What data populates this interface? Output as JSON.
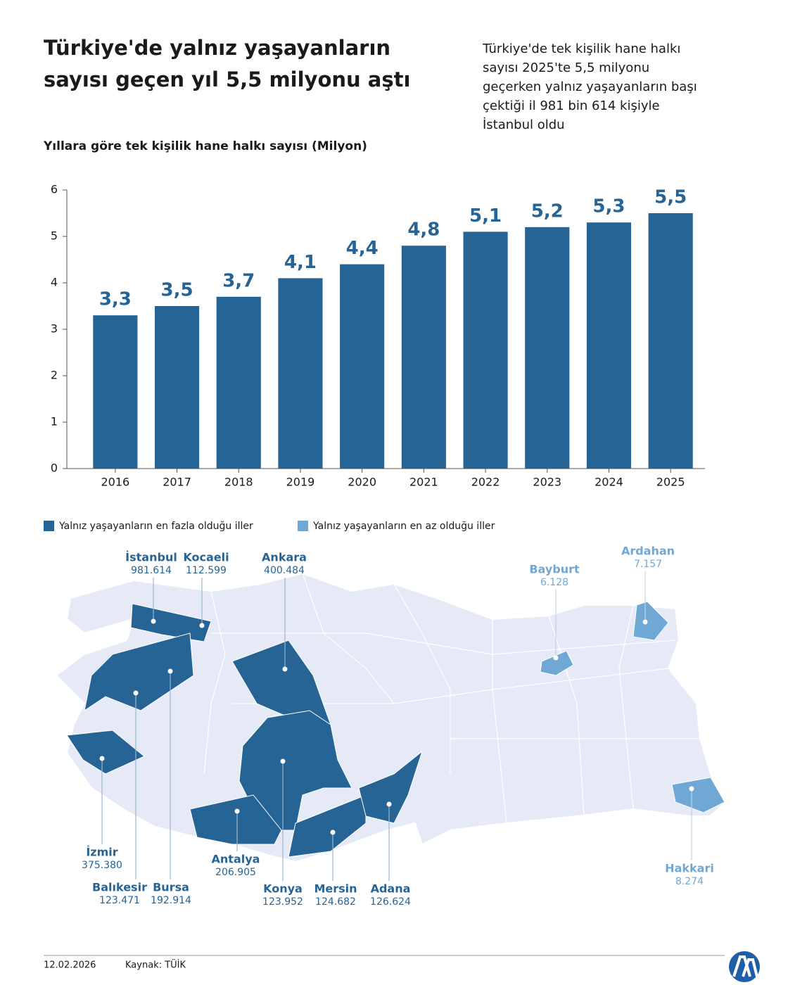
{
  "header": {
    "title": [
      "Türkiye'de yalnız yaşayanların",
      "sayısı geçen yıl 5,5 milyonu aştı"
    ],
    "description": [
      "Türkiye'de tek kişilik hane halkı",
      "sayısı 2025'te 5,5 milyonu",
      "geçerken yalnız yaşayanların başı",
      "çektiği il 981 bin 614 kişiyle",
      "İstanbul oldu"
    ]
  },
  "chart_data": {
    "type": "bar",
    "title": "Yıllara göre tek kişilik hane halkı sayısı (Milyon)",
    "categories": [
      "2016",
      "2017",
      "2018",
      "2019",
      "2020",
      "2021",
      "2022",
      "2023",
      "2024",
      "2025"
    ],
    "values": [
      3.3,
      3.5,
      3.7,
      4.1,
      4.4,
      4.8,
      5.1,
      5.2,
      5.3,
      5.5
    ],
    "value_labels": [
      "3,3",
      "3,5",
      "3,7",
      "4,1",
      "4,4",
      "4,8",
      "5,1",
      "5,2",
      "5,3",
      "5,5"
    ],
    "color": "#266496",
    "ylim": [
      0,
      6
    ],
    "yticks": [
      0,
      1,
      2,
      3,
      4,
      5,
      6
    ],
    "grid": false
  },
  "map": {
    "legend": [
      {
        "label": "Yalnız yaşayanların en fazla olduğu iller",
        "color": "#266496"
      },
      {
        "label": "Yalnız yaşayanların en az olduğu iller",
        "color": "#6fa8d4"
      }
    ],
    "provinces": [
      {
        "name": "İstanbul",
        "value": "981.614",
        "group": 0
      },
      {
        "name": "Kocaeli",
        "value": "112.599",
        "group": 0
      },
      {
        "name": "Ankara",
        "value": "400.484",
        "group": 0
      },
      {
        "name": "Bayburt",
        "value": "6.128",
        "group": 1
      },
      {
        "name": "Ardahan",
        "value": "7.157",
        "group": 1
      },
      {
        "name": "İzmir",
        "value": "375.380",
        "group": 0
      },
      {
        "name": "Balıkesir",
        "value": "123.471",
        "group": 0
      },
      {
        "name": "Bursa",
        "value": "192.914",
        "group": 0
      },
      {
        "name": "Antalya",
        "value": "206.905",
        "group": 0
      },
      {
        "name": "Konya",
        "value": "123.952",
        "group": 0
      },
      {
        "name": "Mersin",
        "value": "124.682",
        "group": 0
      },
      {
        "name": "Adana",
        "value": "126.624",
        "group": 0
      },
      {
        "name": "Hakkari",
        "value": "8.274",
        "group": 1
      }
    ]
  },
  "footer": {
    "date": "12.02.2026",
    "source": "Kaynak: TÜİK"
  }
}
